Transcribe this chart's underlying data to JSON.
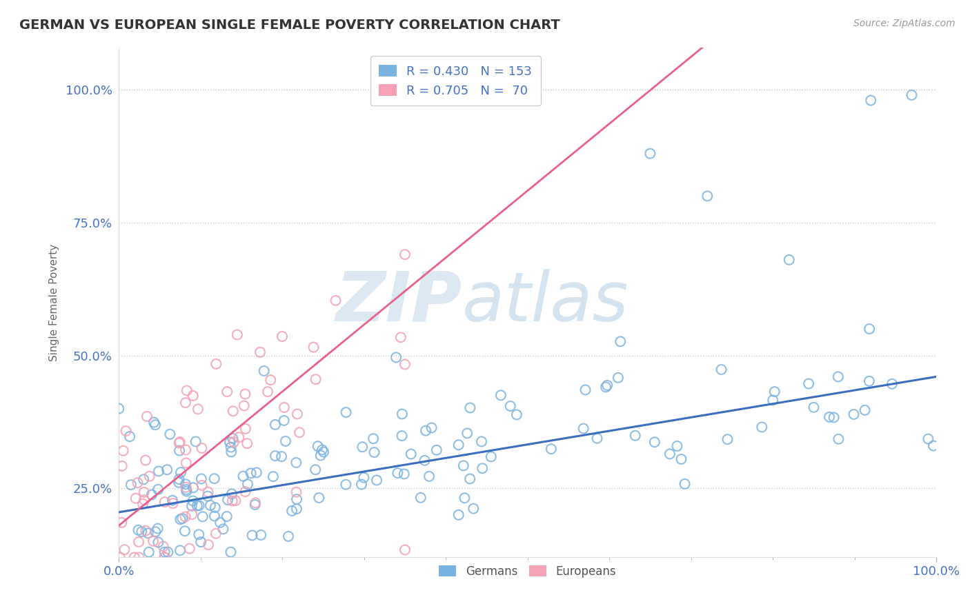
{
  "title": "GERMAN VS EUROPEAN SINGLE FEMALE POVERTY CORRELATION CHART",
  "source": "Source: ZipAtlas.com",
  "ylabel": "Single Female Poverty",
  "german_color": "#7ab3e0",
  "european_color": "#f4a0b5",
  "german_line_color": "#3a6fbf",
  "european_line_color": "#e8608a",
  "title_color": "#333333",
  "axis_label_color": "#4472c4",
  "watermark_zip_color": "#c5d8ee",
  "watermark_atlas_color": "#a8c8e0",
  "seed": 99,
  "n_german": 153,
  "n_european": 70,
  "xlim": [
    0.0,
    1.0
  ],
  "ylim": [
    0.12,
    1.08
  ],
  "grid_color": "#cccccc",
  "legend_r_german": "R = 0.430",
  "legend_n_german": "N = 153",
  "legend_r_european": "R = 0.705",
  "legend_n_european": "N =  70",
  "yticks": [
    0.25,
    0.5,
    0.75,
    1.0
  ],
  "ytick_labels": [
    "25.0%",
    "50.0%",
    "75.0%",
    "100.0%"
  ],
  "xtick_labels": [
    "0.0%",
    "100.0%"
  ]
}
